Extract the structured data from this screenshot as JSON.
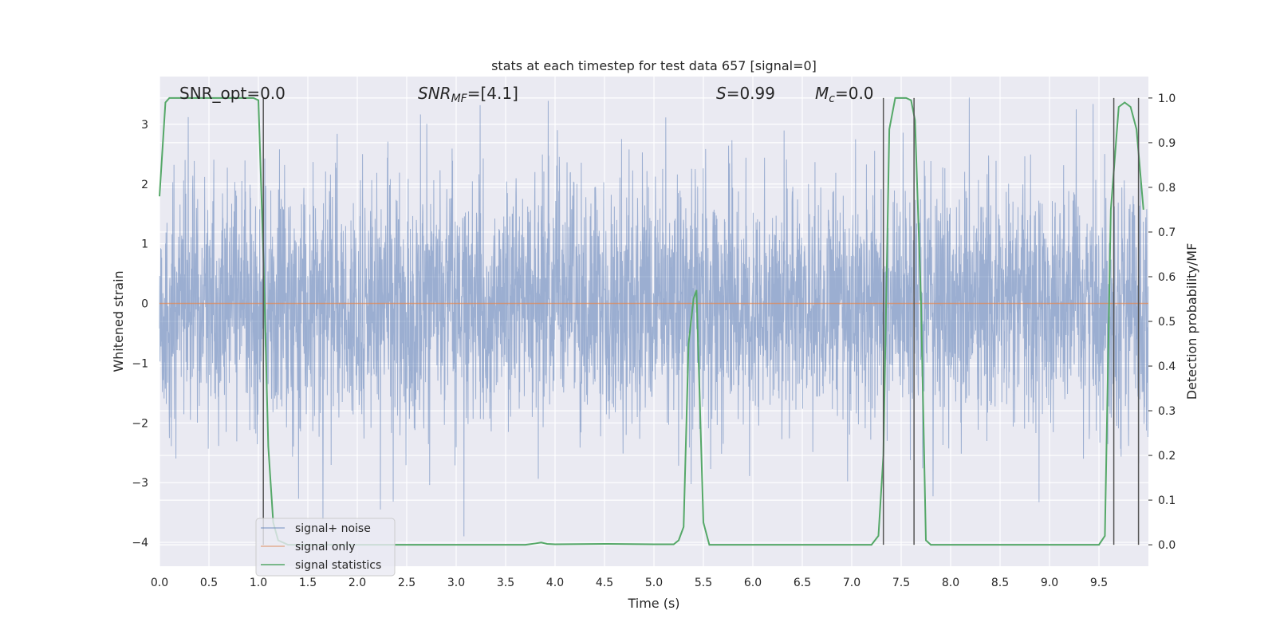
{
  "chart_data": {
    "type": "line",
    "title": "stats at each timestep for test data 657 [signal=0]",
    "xlabel": "Time (s)",
    "ylabel": "Whitened strain",
    "ylabel_right": "Detection probability/MF",
    "xlim": [
      0.0,
      10.0
    ],
    "ylim": [
      -4.4,
      3.8
    ],
    "ylim_right": [
      -0.048,
      1.048
    ],
    "xticks": [
      "0.0",
      "0.5",
      "1.0",
      "1.5",
      "2.0",
      "2.5",
      "3.0",
      "3.5",
      "4.0",
      "4.5",
      "5.0",
      "5.5",
      "6.0",
      "6.5",
      "7.0",
      "7.5",
      "8.0",
      "8.5",
      "9.0",
      "9.5"
    ],
    "yticks": [
      "3",
      "2",
      "1",
      "0",
      "−1",
      "−2",
      "−3",
      "−4"
    ],
    "yticks_right": [
      "1.0",
      "0.9",
      "0.8",
      "0.7",
      "0.6",
      "0.5",
      "0.4",
      "0.3",
      "0.2",
      "0.1",
      "0.0"
    ],
    "annotations": {
      "snr_opt": "SNR_opt=0.0",
      "snr_mf_main": "SNR",
      "snr_mf_sub": "MF",
      "snr_mf_tail": "=[4.1]",
      "s_main": "S",
      "s_tail": "=0.99",
      "mc_main": "M",
      "mc_sub": "c",
      "mc_tail": "=0.0"
    },
    "legend": {
      "position": "lower-left",
      "entries": [
        "signal+ noise",
        "signal only",
        "signal statistics"
      ]
    },
    "series": [
      {
        "name": "signal+ noise",
        "color": "#4c72b0",
        "description": "whitened noise, approx std 1, range about -3.8 to 3.5"
      },
      {
        "name": "signal only",
        "color": "#dd8452",
        "x": [
          0.0,
          10.0
        ],
        "y": [
          0.0,
          0.0
        ]
      },
      {
        "name": "signal statistics",
        "color": "#55a868",
        "x": [
          0.0,
          0.06,
          0.1,
          0.2,
          0.4,
          0.6,
          0.8,
          0.95,
          1.0,
          1.05,
          1.1,
          1.15,
          1.2,
          1.3,
          1.5,
          2.0,
          2.5,
          3.0,
          3.5,
          3.7,
          3.8,
          3.86,
          3.92,
          4.0,
          4.5,
          5.0,
          5.2,
          5.25,
          5.3,
          5.35,
          5.4,
          5.43,
          5.46,
          5.5,
          5.56,
          6.0,
          6.5,
          7.0,
          7.2,
          7.27,
          7.32,
          7.38,
          7.44,
          7.5,
          7.55,
          7.6,
          7.64,
          7.7,
          7.75,
          7.8,
          8.0,
          9.0,
          9.5,
          9.56,
          9.62,
          9.7,
          9.76,
          9.82,
          9.88,
          9.95
        ],
        "y": [
          0.78,
          0.99,
          1.0,
          1.0,
          1.0,
          1.0,
          1.0,
          1.0,
          0.995,
          0.65,
          0.22,
          0.05,
          0.01,
          0.0,
          0.0,
          0.0,
          0.0,
          0.0,
          0.0,
          0.0,
          0.003,
          0.005,
          0.002,
          0.001,
          0.002,
          0.001,
          0.001,
          0.01,
          0.04,
          0.45,
          0.55,
          0.57,
          0.35,
          0.05,
          0.0,
          0.0,
          0.0,
          0.0,
          0.0,
          0.02,
          0.2,
          0.93,
          1.0,
          1.0,
          1.0,
          0.995,
          0.95,
          0.55,
          0.01,
          0.0,
          0.0,
          0.0,
          0.0,
          0.02,
          0.75,
          0.98,
          0.99,
          0.98,
          0.93,
          0.75
        ]
      }
    ],
    "vertical_lines_x": [
      1.05,
      7.32,
      7.63,
      9.65,
      9.9
    ],
    "grid": true
  }
}
